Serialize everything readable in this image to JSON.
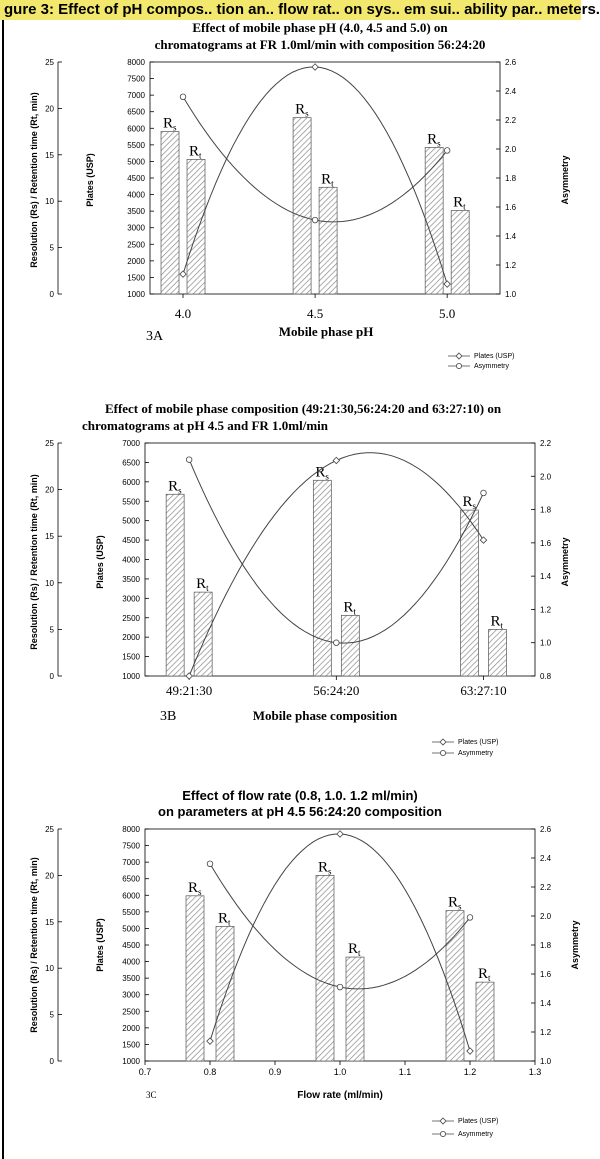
{
  "header": {
    "title": "gure 3: Effect of pH compos.. tion an.. flow rat.. on sys.. em sui.. ability par.. meters."
  },
  "colors": {
    "bar_fill": "#ffffff",
    "bar_hatch": "#8a8a8a",
    "line": "#444444",
    "header_band": "#f2e86e"
  },
  "legend": {
    "plates": "Plates (USP)",
    "asymmetry": "Asymmetry"
  },
  "bar_labels": {
    "rs_main": "R",
    "rs_sub": "s",
    "rt_main": "R",
    "rt_sub": "t"
  },
  "chart_data": [
    {
      "id": "A",
      "type": "bar",
      "panel_label": "3A",
      "title_line1": "Effect of mobile phase pH (4.0, 4.5 and 5.0) on",
      "title_line2": "chromatograms at FR 1.0ml/min with composition  56:24:20",
      "xlabel": "Mobile phase pH",
      "ylabel_left": "Resolution (Rs) / Retention time (Rt, min)",
      "ylabel_plates": "Plates (USP)",
      "ylabel_right": "Asymmetry",
      "left_ticks": [
        "0",
        "5",
        "10",
        "15",
        "20",
        "25"
      ],
      "plates_ticks": [
        "1000",
        "1500",
        "2000",
        "2500",
        "3000",
        "3500",
        "4000",
        "4500",
        "5000",
        "5500",
        "6000",
        "6500",
        "7000",
        "7500",
        "8000"
      ],
      "right_ticks": [
        "1.0",
        "1.2",
        "1.4",
        "1.6",
        "1.8",
        "2.0",
        "2.2",
        "2.4",
        "2.6"
      ],
      "categories": [
        "4.0",
        "4.5",
        "5.0"
      ],
      "x": [
        4.0,
        4.5,
        5.0
      ],
      "xlim": [
        3.875,
        5.2
      ],
      "ylim_left": [
        0,
        25
      ],
      "ylim_plates": [
        1000,
        8000
      ],
      "ylim_right": [
        1.0,
        2.6
      ],
      "rs": [
        17.5,
        19.0,
        15.8
      ],
      "rt": [
        14.5,
        11.5,
        9.0
      ],
      "plates": [
        1600,
        7850,
        1300
      ],
      "asymmetry": [
        2.36,
        1.51,
        1.99
      ]
    },
    {
      "id": "B",
      "type": "bar",
      "panel_label": "3B",
      "title_line1": "Effect of mobile phase composition (49:21:30,56:24:20 and 63:27:10) on",
      "title_line2": "chromatograms at pH 4.5 and FR 1.0ml/min",
      "xlabel": "Mobile phase composition",
      "ylabel_left": "Resolution (Rs) / Retention time (Rt, min)",
      "ylabel_plates": "Plates (USP)",
      "ylabel_right": "Asymmetry",
      "left_ticks": [
        "0",
        "5",
        "10",
        "15",
        "20",
        "25"
      ],
      "plates_ticks": [
        "1000",
        "1500",
        "2000",
        "2500",
        "3000",
        "3500",
        "4000",
        "4500",
        "5000",
        "5500",
        "6000",
        "6500",
        "7000"
      ],
      "right_ticks": [
        "0.8",
        "1.0",
        "1.2",
        "1.4",
        "1.6",
        "1.8",
        "2.0",
        "2.2"
      ],
      "categories": [
        "49:21:30",
        "56:24:20",
        "63:27:10"
      ],
      "x": [
        0,
        1,
        2
      ],
      "xlim": [
        -0.3,
        2.35
      ],
      "ylim_left": [
        0,
        25
      ],
      "ylim_plates": [
        1000,
        7000
      ],
      "ylim_right": [
        0.8,
        2.2
      ],
      "rs": [
        19.5,
        21.0,
        17.8
      ],
      "rt": [
        9.0,
        6.5,
        5.0
      ],
      "plates": [
        1000,
        6550,
        4500
      ],
      "asymmetry": [
        2.1,
        1.0,
        1.9
      ]
    },
    {
      "id": "C",
      "type": "bar",
      "panel_label": "3C",
      "title_line1": "Effect of flow rate (0.8, 1.0. 1.2 ml/min)",
      "title_line2": "on parameters at pH 4.5  56:24:20 composition",
      "xlabel": "Flow rate (ml/min)",
      "ylabel_left": "Resolution (Rs) / Retention time (Rt, min)",
      "ylabel_plates": "Plates (USP)",
      "ylabel_right": "Asymmetry",
      "left_ticks": [
        "0",
        "5",
        "10",
        "15",
        "20",
        "25"
      ],
      "plates_ticks": [
        "1000",
        "1500",
        "2000",
        "2500",
        "3000",
        "3500",
        "4000",
        "4500",
        "5000",
        "5500",
        "6000",
        "6500",
        "7000",
        "7500",
        "8000"
      ],
      "right_ticks": [
        "1.0",
        "1.2",
        "1.4",
        "1.6",
        "1.8",
        "2.0",
        "2.2",
        "2.4",
        "2.6"
      ],
      "x_ticks": [
        "0.7",
        "0.8",
        "0.9",
        "1.0",
        "1.1",
        "1.2",
        "1.3"
      ],
      "x": [
        0.8,
        1.0,
        1.2
      ],
      "xlim": [
        0.7,
        1.3
      ],
      "ylim_left": [
        0,
        25
      ],
      "ylim_plates": [
        1000,
        8000
      ],
      "ylim_right": [
        1.0,
        2.6
      ],
      "rs": [
        17.8,
        20.0,
        16.2
      ],
      "rt": [
        14.5,
        11.2,
        8.5
      ],
      "plates": [
        1600,
        7850,
        1300
      ],
      "asymmetry": [
        2.36,
        1.51,
        1.99
      ]
    }
  ]
}
